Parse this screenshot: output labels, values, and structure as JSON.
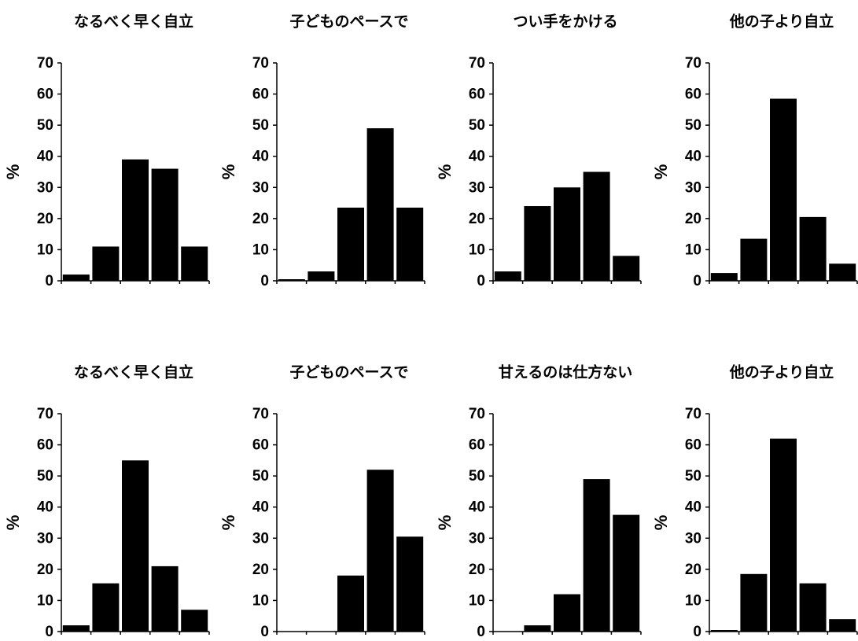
{
  "chart_data": [
    {
      "type": "bar",
      "title": "なるべく早く自立",
      "ylabel": "%",
      "ylim": [
        0,
        70
      ],
      "yticks": [
        "0",
        "10",
        "20",
        "30",
        "40",
        "50",
        "60",
        "70"
      ],
      "values": [
        2,
        11,
        39,
        36,
        11
      ],
      "bar_color": "#000000"
    },
    {
      "type": "bar",
      "title": "子どものペースで",
      "ylabel": "%",
      "ylim": [
        0,
        70
      ],
      "yticks": [
        "0",
        "10",
        "20",
        "30",
        "40",
        "50",
        "60",
        "70"
      ],
      "values": [
        0.5,
        3,
        23.5,
        49,
        23.5
      ],
      "bar_color": "#000000"
    },
    {
      "type": "bar",
      "title": "つい手をかける",
      "ylabel": "%",
      "ylim": [
        0,
        70
      ],
      "yticks": [
        "0",
        "10",
        "20",
        "30",
        "40",
        "50",
        "60",
        "70"
      ],
      "values": [
        3,
        24,
        30,
        35,
        8
      ],
      "bar_color": "#000000"
    },
    {
      "type": "bar",
      "title": "他の子より自立",
      "ylabel": "%",
      "ylim": [
        0,
        70
      ],
      "yticks": [
        "0",
        "10",
        "20",
        "30",
        "40",
        "50",
        "60",
        "70"
      ],
      "values": [
        2.5,
        13.5,
        58.5,
        20.5,
        5.5
      ],
      "bar_color": "#000000"
    },
    {
      "type": "bar",
      "title": "なるべく早く自立",
      "ylabel": "%",
      "ylim": [
        0,
        70
      ],
      "yticks": [
        "0",
        "10",
        "20",
        "30",
        "40",
        "50",
        "60",
        "70"
      ],
      "values": [
        2,
        15.5,
        55,
        21,
        7
      ],
      "bar_color": "#000000"
    },
    {
      "type": "bar",
      "title": "子どものペースで",
      "ylabel": "%",
      "ylim": [
        0,
        70
      ],
      "yticks": [
        "0",
        "10",
        "20",
        "30",
        "40",
        "50",
        "60",
        "70"
      ],
      "values": [
        0,
        0,
        18,
        52,
        30.5
      ],
      "bar_color": "#000000"
    },
    {
      "type": "bar",
      "title": "甘えるのは仕方ない",
      "ylabel": "%",
      "ylim": [
        0,
        70
      ],
      "yticks": [
        "0",
        "10",
        "20",
        "30",
        "40",
        "50",
        "60",
        "70"
      ],
      "values": [
        0,
        2,
        12,
        49,
        37.5
      ],
      "bar_color": "#000000"
    },
    {
      "type": "bar",
      "title": "他の子より自立",
      "ylabel": "%",
      "ylim": [
        0,
        70
      ],
      "yticks": [
        "0",
        "10",
        "20",
        "30",
        "40",
        "50",
        "60",
        "70"
      ],
      "values": [
        0.5,
        18.5,
        62,
        15.5,
        4
      ],
      "bar_color": "#000000"
    }
  ]
}
